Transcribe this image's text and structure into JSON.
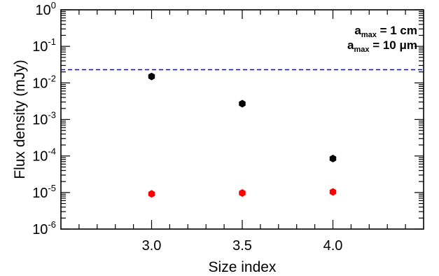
{
  "chart_data": {
    "type": "scatter",
    "xlabel": "Size index",
    "ylabel": "Flux density (mJy)",
    "xlim": [
      2.5,
      4.5
    ],
    "ylim": [
      1e-06,
      1
    ],
    "yscale": "log",
    "x_ticks": [
      {
        "value": 3.0,
        "label": "3.0"
      },
      {
        "value": 3.5,
        "label": "3.5"
      },
      {
        "value": 4.0,
        "label": "4.0"
      }
    ],
    "y_ticks": [
      {
        "value": 1e-06,
        "base": "10",
        "exp": "-6"
      },
      {
        "value": 1e-05,
        "base": "10",
        "exp": "-5"
      },
      {
        "value": 0.0001,
        "base": "10",
        "exp": "-4"
      },
      {
        "value": 0.001,
        "base": "10",
        "exp": "-3"
      },
      {
        "value": 0.01,
        "base": "10",
        "exp": "-2"
      },
      {
        "value": 0.1,
        "base": "10",
        "exp": "-1"
      },
      {
        "value": 1,
        "base": "10",
        "exp": "0"
      }
    ],
    "grid": false,
    "legend_position": "top-right",
    "series": [
      {
        "legend_main": "a",
        "legend_sub": "max",
        "legend_rest": " = 1 cm",
        "color": "#000000",
        "points": [
          {
            "x": 3.0,
            "y": 0.015
          },
          {
            "x": 3.5,
            "y": 0.0027
          },
          {
            "x": 4.0,
            "y": 8.5e-05
          }
        ]
      },
      {
        "legend_main": "a",
        "legend_sub": "max",
        "legend_rest": " = 10 μm",
        "color": "#ff0000",
        "points": [
          {
            "x": 3.0,
            "y": 9.2e-06
          },
          {
            "x": 3.5,
            "y": 9.7e-06
          },
          {
            "x": 4.0,
            "y": 1.04e-05
          }
        ]
      }
    ],
    "reference_line": {
      "y": 0.023,
      "color": "#0000ff",
      "style": "dashed"
    }
  }
}
